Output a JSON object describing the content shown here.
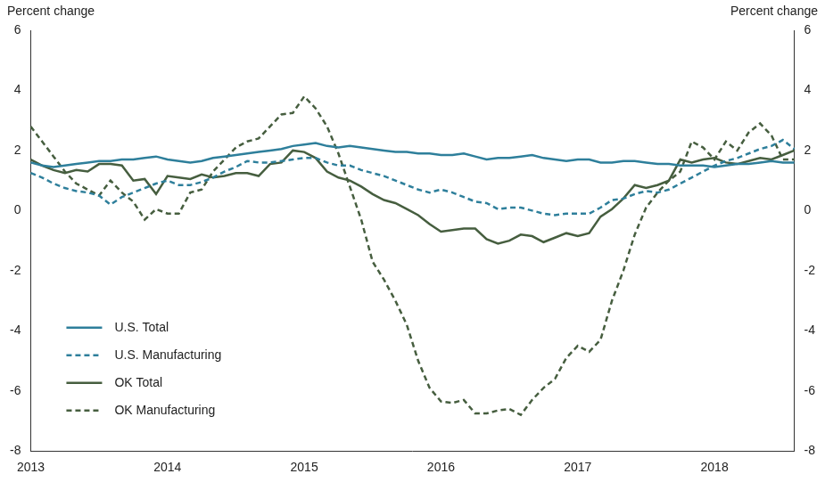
{
  "chart_data": {
    "type": "line",
    "ylabel": "Percent change",
    "y2label": "Percent change",
    "categories": [
      "2013",
      null,
      null,
      null,
      null,
      null,
      null,
      null,
      null,
      null,
      null,
      null,
      "2014",
      null,
      null,
      null,
      null,
      null,
      null,
      null,
      null,
      null,
      null,
      null,
      "2015",
      null,
      null,
      null,
      null,
      null,
      null,
      null,
      null,
      null,
      null,
      null,
      "2016",
      null,
      null,
      null,
      null,
      null,
      null,
      null,
      null,
      null,
      null,
      null,
      "2017",
      null,
      null,
      null,
      null,
      null,
      null,
      null,
      null,
      null,
      null,
      null,
      "2018",
      null,
      null,
      null,
      null,
      null,
      null,
      null
    ],
    "series": [
      {
        "name": "U.S. Total",
        "color": "#2e7f9b",
        "line_style": "solid",
        "values": [
          1.6,
          1.5,
          1.45,
          1.5,
          1.55,
          1.6,
          1.65,
          1.65,
          1.7,
          1.7,
          1.75,
          1.8,
          1.7,
          1.65,
          1.6,
          1.65,
          1.75,
          1.8,
          1.85,
          1.9,
          1.95,
          2.0,
          2.05,
          2.15,
          2.2,
          2.25,
          2.15,
          2.1,
          2.15,
          2.1,
          2.05,
          2.0,
          1.95,
          1.95,
          1.9,
          1.9,
          1.85,
          1.85,
          1.9,
          1.8,
          1.7,
          1.75,
          1.75,
          1.8,
          1.85,
          1.75,
          1.7,
          1.65,
          1.7,
          1.7,
          1.6,
          1.6,
          1.65,
          1.65,
          1.6,
          1.55,
          1.55,
          1.5,
          1.5,
          1.5,
          1.45,
          1.5,
          1.55,
          1.55,
          1.6,
          1.65,
          1.6,
          1.6
        ]
      },
      {
        "name": "U.S. Manufacturing",
        "color": "#2e7f9b",
        "line_style": "dashed",
        "values": [
          1.25,
          1.1,
          0.9,
          0.75,
          0.65,
          0.6,
          0.5,
          0.2,
          0.45,
          0.6,
          0.75,
          0.9,
          1.0,
          0.85,
          0.85,
          0.95,
          1.1,
          1.3,
          1.45,
          1.65,
          1.6,
          1.6,
          1.65,
          1.7,
          1.75,
          1.75,
          1.6,
          1.5,
          1.5,
          1.35,
          1.25,
          1.15,
          1.0,
          0.85,
          0.7,
          0.6,
          0.7,
          0.6,
          0.45,
          0.3,
          0.25,
          0.05,
          0.1,
          0.1,
          0.0,
          -0.1,
          -0.15,
          -0.1,
          -0.1,
          -0.1,
          0.1,
          0.35,
          0.4,
          0.55,
          0.65,
          0.6,
          0.7,
          0.9,
          1.1,
          1.3,
          1.5,
          1.65,
          1.75,
          1.9,
          2.05,
          2.15,
          2.35,
          2.05
        ]
      },
      {
        "name": "OK Total",
        "color": "#465e3f",
        "line_style": "solid",
        "values": [
          1.7,
          1.5,
          1.35,
          1.25,
          1.35,
          1.3,
          1.55,
          1.55,
          1.5,
          1.0,
          1.05,
          0.55,
          1.15,
          1.1,
          1.05,
          1.2,
          1.1,
          1.15,
          1.25,
          1.25,
          1.15,
          1.55,
          1.6,
          2.0,
          1.95,
          1.75,
          1.3,
          1.1,
          1.0,
          0.8,
          0.55,
          0.35,
          0.25,
          0.05,
          -0.15,
          -0.45,
          -0.7,
          -0.65,
          -0.6,
          -0.6,
          -0.95,
          -1.1,
          -1.0,
          -0.8,
          -0.85,
          -1.05,
          -0.9,
          -0.75,
          -0.85,
          -0.75,
          -0.2,
          0.05,
          0.4,
          0.85,
          0.75,
          0.85,
          1.0,
          1.7,
          1.6,
          1.7,
          1.75,
          1.6,
          1.55,
          1.65,
          1.75,
          1.7,
          1.85,
          2.0
        ]
      },
      {
        "name": "OK Manufacturing",
        "color": "#465e3f",
        "line_style": "dashed",
        "values": [
          2.8,
          2.3,
          1.8,
          1.3,
          0.9,
          0.7,
          0.5,
          1.0,
          0.6,
          0.3,
          -0.3,
          0.05,
          -0.1,
          -0.1,
          0.6,
          0.7,
          1.3,
          1.7,
          2.1,
          2.3,
          2.4,
          2.8,
          3.2,
          3.25,
          3.8,
          3.4,
          2.8,
          1.9,
          0.8,
          -0.3,
          -1.7,
          -2.3,
          -3.0,
          -3.8,
          -5.0,
          -5.9,
          -6.35,
          -6.4,
          -6.3,
          -6.75,
          -6.75,
          -6.65,
          -6.6,
          -6.8,
          -6.3,
          -5.9,
          -5.6,
          -4.9,
          -4.5,
          -4.7,
          -4.3,
          -3.0,
          -2.0,
          -0.8,
          0.1,
          0.6,
          1.0,
          1.3,
          2.3,
          2.1,
          1.7,
          2.3,
          2.0,
          2.6,
          2.9,
          2.5,
          1.7,
          1.7
        ]
      }
    ],
    "ylim": [
      -8,
      6
    ],
    "yticks": [
      -8,
      -6,
      -4,
      -2,
      0,
      2,
      4,
      6
    ],
    "y2lim": [
      -8,
      6
    ],
    "y2ticks": [
      -8,
      -6,
      -4,
      -2,
      0,
      2,
      4,
      6
    ],
    "grid": false,
    "legend": "lower left"
  }
}
